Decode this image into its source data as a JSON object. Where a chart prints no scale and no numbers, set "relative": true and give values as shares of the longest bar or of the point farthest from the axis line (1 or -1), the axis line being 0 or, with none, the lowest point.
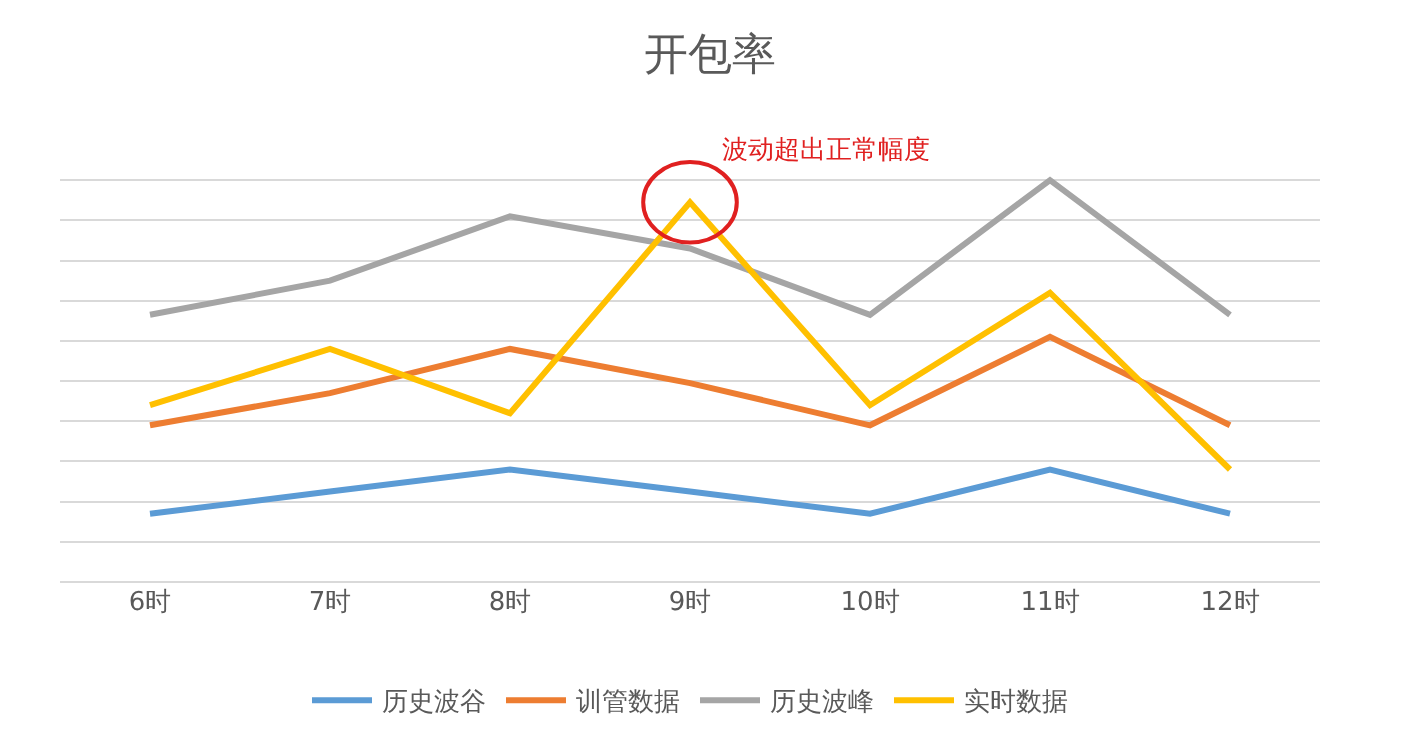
{
  "chart_data": {
    "type": "line",
    "title": "开包率",
    "relative": true,
    "categories": [
      "6时",
      "7时",
      "8时",
      "9时",
      "10时",
      "11时",
      "12时"
    ],
    "series": [
      {
        "name": "历史波谷",
        "color": "#5b9bd5",
        "values": [
          0.17,
          0.225,
          0.28,
          0.225,
          0.17,
          0.28,
          0.17
        ]
      },
      {
        "name": "训管数据",
        "color": "#ed7d31",
        "values": [
          0.39,
          0.47,
          0.58,
          0.495,
          0.39,
          0.61,
          0.39
        ]
      },
      {
        "name": "历史波峰",
        "color": "#a5a5a5",
        "values": [
          0.665,
          0.75,
          0.91,
          0.83,
          0.665,
          1,
          0.665
        ]
      },
      {
        "name": "实时数据",
        "color": "#ffc000",
        "values": [
          0.44,
          0.58,
          0.42,
          0.945,
          0.44,
          0.72,
          0.28
        ]
      }
    ],
    "annotations": [
      {
        "text": "波动超出正常幅度",
        "x": "9时",
        "y": 0.945
      }
    ],
    "grid": "y",
    "legend": "bottom",
    "marker": "none",
    "line_style": "solid"
  }
}
